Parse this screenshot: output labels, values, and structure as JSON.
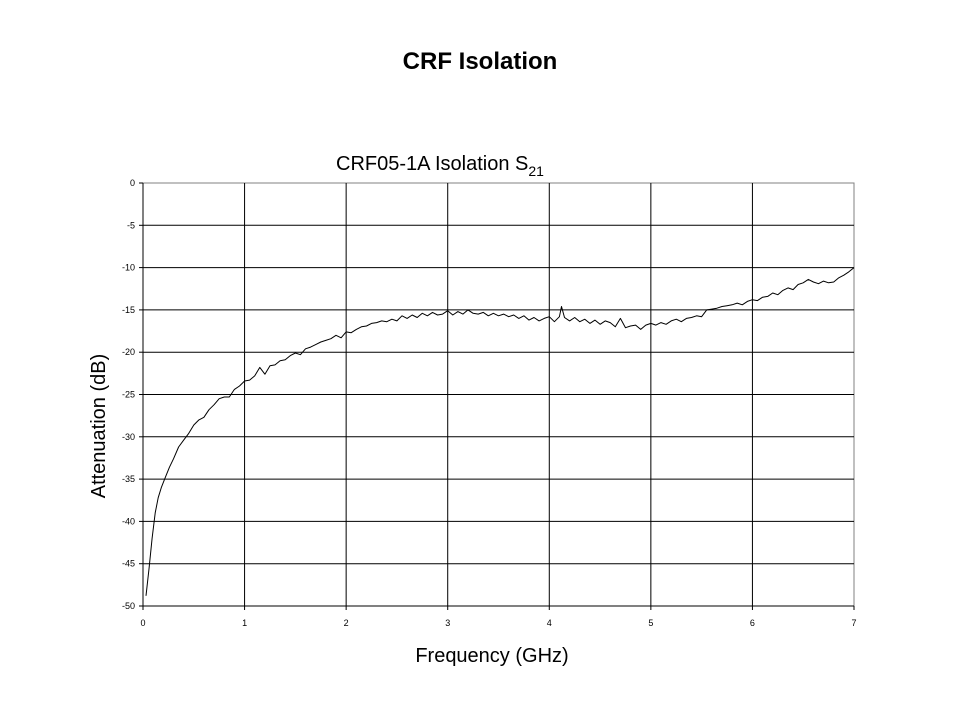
{
  "slide": {
    "title": "CRF Isolation"
  },
  "chart_data": {
    "type": "line",
    "title": "CRF05-1A Isolation S",
    "title_subscript": "21",
    "xlabel": "Frequency (GHz)",
    "ylabel": "Attenuation (dB)",
    "xlim": [
      0,
      7
    ],
    "ylim": [
      -50,
      0
    ],
    "xticks": [
      "0",
      "1",
      "2",
      "3",
      "4",
      "5",
      "6",
      "7"
    ],
    "yticks": [
      "0",
      "-5",
      "-10",
      "-15",
      "-20",
      "-25",
      "-30",
      "-35",
      "-40",
      "-45",
      "-50"
    ],
    "grid": true,
    "legend": "none",
    "line_color": "#000000",
    "series": [
      {
        "x": [
          0.03,
          0.06,
          0.09,
          0.12,
          0.15,
          0.18,
          0.22,
          0.26,
          0.3,
          0.35,
          0.4,
          0.45,
          0.5,
          0.55,
          0.6,
          0.65,
          0.7,
          0.75,
          0.8,
          0.85,
          0.9,
          0.95,
          1.0,
          1.05,
          1.1,
          1.15,
          1.2,
          1.25,
          1.3,
          1.35,
          1.4,
          1.45,
          1.5,
          1.55,
          1.6,
          1.65,
          1.7,
          1.75,
          1.8,
          1.85,
          1.9,
          1.95,
          2.0,
          2.05,
          2.1,
          2.15,
          2.2,
          2.25,
          2.3,
          2.35,
          2.4,
          2.45,
          2.5,
          2.55,
          2.6,
          2.65,
          2.7,
          2.75,
          2.8,
          2.85,
          2.9,
          2.95,
          3.0,
          3.05,
          3.1,
          3.15,
          3.2,
          3.25,
          3.3,
          3.35,
          3.4,
          3.45,
          3.5,
          3.55,
          3.6,
          3.65,
          3.7,
          3.75,
          3.8,
          3.85,
          3.9,
          3.95,
          4.0,
          4.05,
          4.1,
          4.12,
          4.15,
          4.2,
          4.25,
          4.3,
          4.35,
          4.4,
          4.45,
          4.5,
          4.55,
          4.6,
          4.65,
          4.7,
          4.75,
          4.8,
          4.85,
          4.9,
          4.95,
          5.0,
          5.05,
          5.1,
          5.15,
          5.2,
          5.25,
          5.3,
          5.35,
          5.4,
          5.45,
          5.5,
          5.55,
          5.6,
          5.65,
          5.7,
          5.75,
          5.8,
          5.85,
          5.9,
          5.95,
          6.0,
          6.05,
          6.1,
          6.15,
          6.2,
          6.25,
          6.3,
          6.35,
          6.4,
          6.45,
          6.5,
          6.55,
          6.6,
          6.65,
          6.7,
          6.75,
          6.8,
          6.85,
          6.9,
          6.95,
          7.0
        ],
        "values": [
          -48.8,
          -45.5,
          -42.0,
          -39.0,
          -37.2,
          -36.0,
          -34.8,
          -33.6,
          -32.6,
          -31.2,
          -30.4,
          -29.6,
          -28.6,
          -28.0,
          -27.7,
          -26.8,
          -26.2,
          -25.5,
          -25.3,
          -25.3,
          -24.4,
          -24.0,
          -23.4,
          -23.3,
          -22.8,
          -21.8,
          -22.6,
          -21.6,
          -21.5,
          -21.0,
          -20.9,
          -20.4,
          -20.1,
          -20.3,
          -19.6,
          -19.4,
          -19.1,
          -18.8,
          -18.6,
          -18.4,
          -18.0,
          -18.3,
          -17.6,
          -17.7,
          -17.3,
          -17.0,
          -16.9,
          -16.6,
          -16.5,
          -16.3,
          -16.4,
          -16.1,
          -16.3,
          -15.7,
          -16.0,
          -15.6,
          -15.9,
          -15.4,
          -15.7,
          -15.3,
          -15.6,
          -15.5,
          -15.1,
          -15.6,
          -15.2,
          -15.5,
          -15.0,
          -15.4,
          -15.5,
          -15.3,
          -15.7,
          -15.4,
          -15.7,
          -15.5,
          -15.8,
          -15.6,
          -16.0,
          -15.7,
          -16.2,
          -15.9,
          -16.3,
          -16.0,
          -15.8,
          -16.4,
          -15.8,
          -14.6,
          -15.9,
          -16.3,
          -15.9,
          -16.4,
          -16.1,
          -16.6,
          -16.2,
          -16.7,
          -16.3,
          -16.5,
          -17.0,
          -16.0,
          -17.1,
          -16.9,
          -16.8,
          -17.3,
          -16.8,
          -16.6,
          -16.8,
          -16.5,
          -16.7,
          -16.3,
          -16.1,
          -16.4,
          -16.0,
          -15.9,
          -15.7,
          -15.8,
          -15.0,
          -14.9,
          -14.8,
          -14.6,
          -14.5,
          -14.4,
          -14.2,
          -14.4,
          -14.0,
          -13.8,
          -13.9,
          -13.5,
          -13.4,
          -13.0,
          -13.2,
          -12.7,
          -12.4,
          -12.6,
          -12.0,
          -11.8,
          -11.4,
          -11.7,
          -11.9,
          -11.6,
          -11.8,
          -11.7,
          -11.2,
          -10.9,
          -10.5,
          -10.0
        ]
      }
    ]
  }
}
